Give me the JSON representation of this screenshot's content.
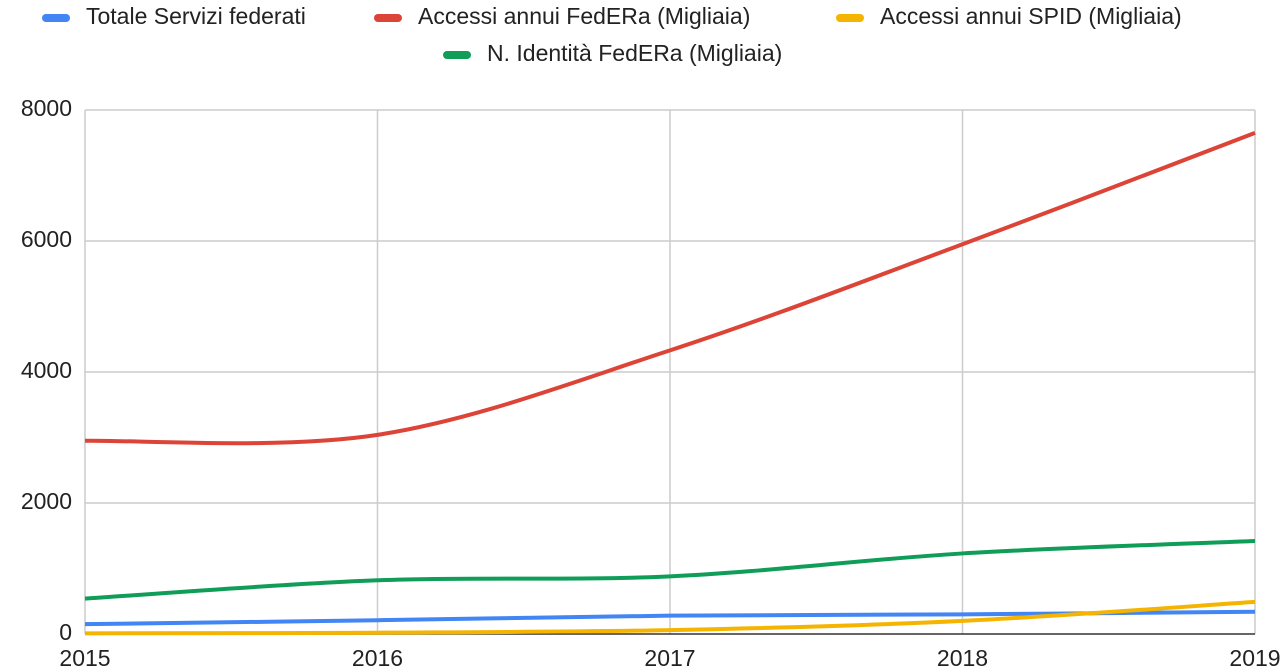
{
  "chart_data": {
    "type": "line",
    "x": [
      2015,
      2016,
      2017,
      2018,
      2019
    ],
    "xlim": [
      2015,
      2019
    ],
    "xticks": [
      2015,
      2016,
      2017,
      2018,
      2019
    ],
    "ylim": [
      0,
      8000
    ],
    "yticks": [
      0,
      2000,
      4000,
      6000,
      8000
    ],
    "grid": true,
    "legend": "top",
    "smooth": true,
    "series": [
      {
        "name": "Totale Servizi federati",
        "color": "#4285f4",
        "values": [
          150,
          210,
          280,
          300,
          340
        ]
      },
      {
        "name": "Accessi annui FedERa (Migliaia)",
        "color": "#db4437",
        "values": [
          2950,
          3040,
          4330,
          5950,
          7650
        ]
      },
      {
        "name": "Accessi annui SPID (Migliaia)",
        "color": "#f4b400",
        "values": [
          10,
          20,
          60,
          200,
          490
        ]
      },
      {
        "name": "N. Identità FedERa (Migliaia)",
        "color": "#0f9d58",
        "values": [
          540,
          820,
          880,
          1230,
          1420
        ]
      }
    ]
  }
}
